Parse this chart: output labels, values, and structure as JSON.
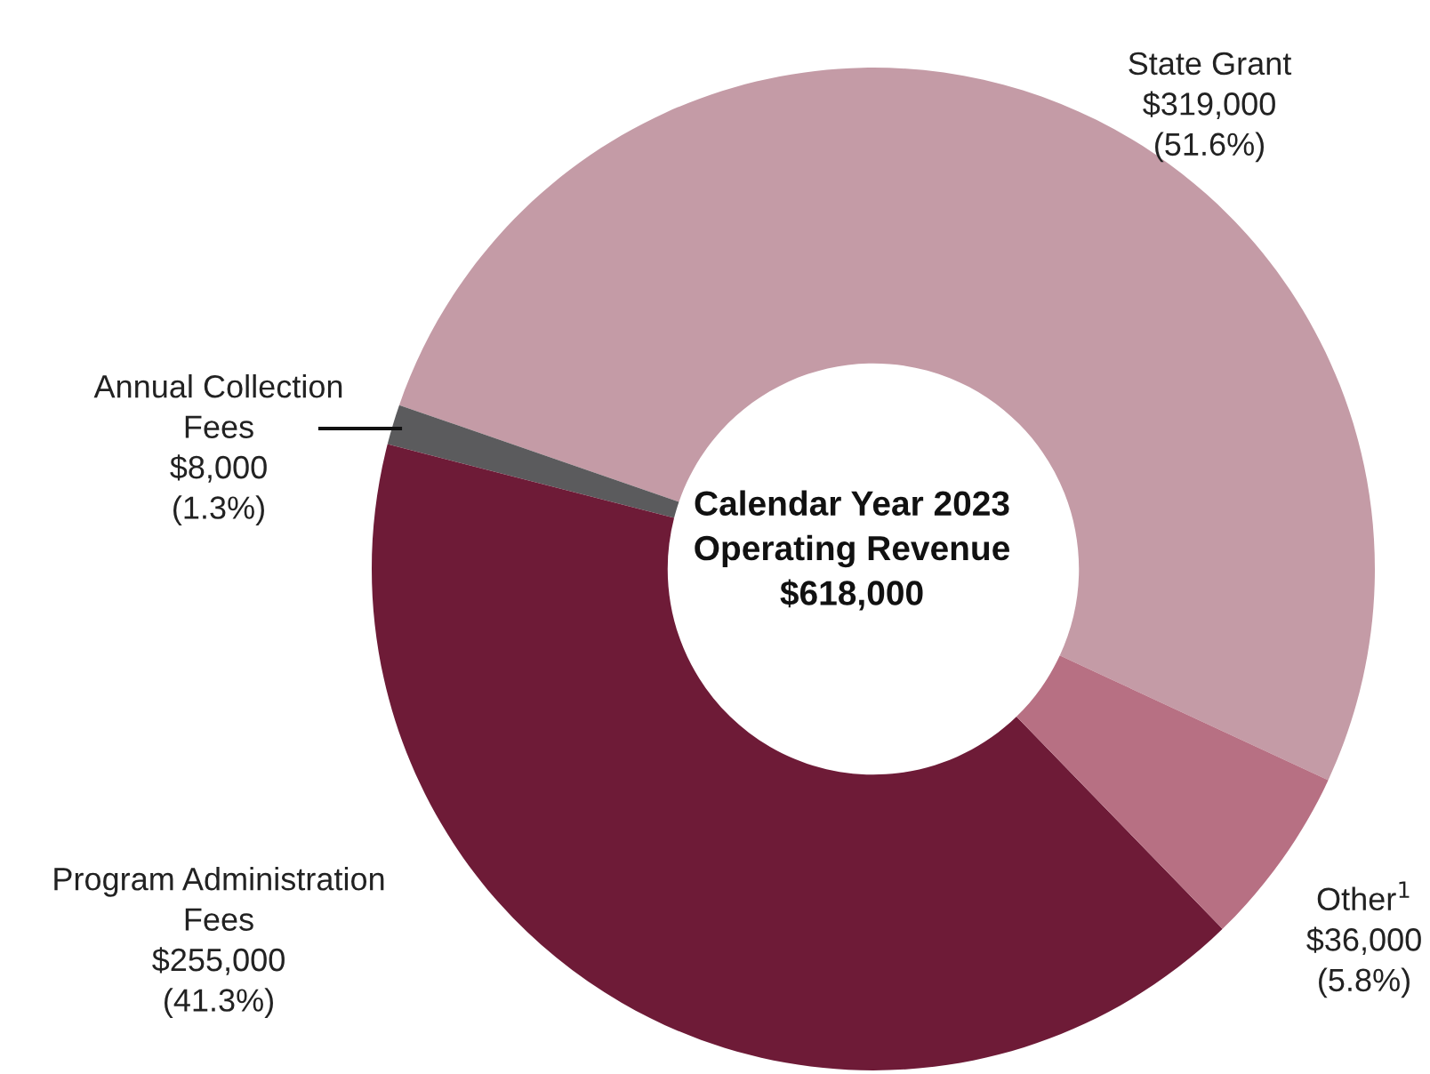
{
  "chart_data": {
    "type": "donut",
    "categories": [
      "State Grant",
      "Annual Collection Fees",
      "Program Administration Fees",
      "Other$^{1}$"
    ],
    "values": [
      319000,
      8000,
      255000,
      36000
    ],
    "value_labels": [
      "$319,000\n(51.6%)",
      "$8,000\n(1.3%)",
      "$255,000\n(41.3%)",
      "$36,000\n(5.8%)"
    ],
    "colors": [
      "#c49ba6",
      "#5b5b5d",
      "#6e1b37",
      "#b77083"
    ],
    "title": "Calendar Year 2023\nOperating Revenue\n$618,000"
  }
}
